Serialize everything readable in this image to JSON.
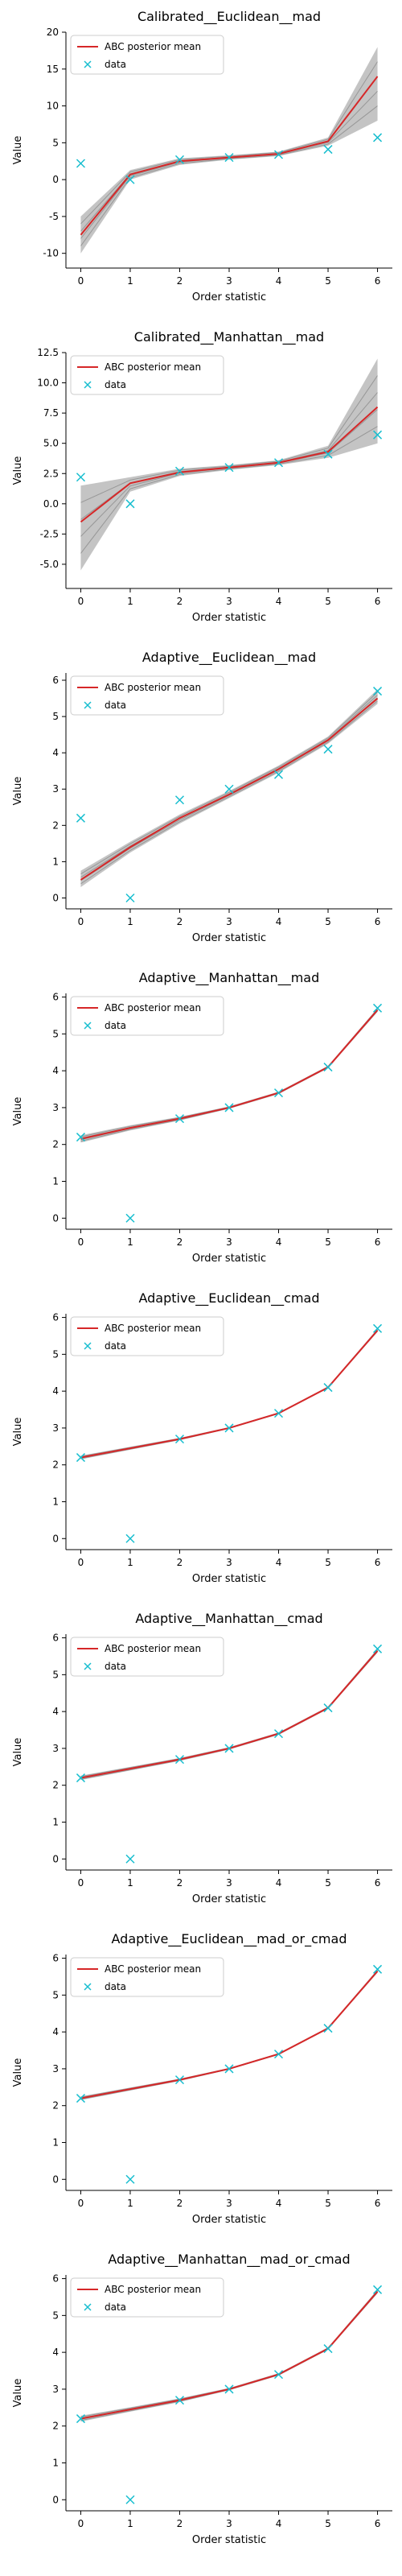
{
  "chart_data": [
    {
      "type": "line",
      "title": "Calibrated__Euclidean__mad",
      "xlabel": "Order statistic",
      "ylabel": "Value",
      "xlim": [
        -0.3,
        6.3
      ],
      "ylim": [
        -12,
        20
      ],
      "xticks": [
        "0",
        "1",
        "2",
        "3",
        "4",
        "5",
        "6"
      ],
      "yticks": [
        "-10",
        "-5",
        "0",
        "5",
        "10",
        "15",
        "20"
      ],
      "legend": {
        "position": "top-left",
        "entries": [
          "ABC posterior mean",
          "data"
        ]
      },
      "series": [
        {
          "name": "ABC posterior mean",
          "x": [
            0,
            1,
            2,
            3,
            4,
            5,
            6
          ],
          "values": [
            -7.5,
            0.7,
            2.5,
            3.0,
            3.5,
            5.2,
            14.0
          ],
          "color": "#d62728"
        },
        {
          "name": "data",
          "x": [
            0,
            1,
            2,
            3,
            4,
            5,
            6
          ],
          "values": [
            2.2,
            0.0,
            2.7,
            3.0,
            3.4,
            4.1,
            5.7
          ],
          "color": "#17becf",
          "marker": "x"
        }
      ],
      "posterior_band": {
        "lower": [
          -10.0,
          0.0,
          2.0,
          2.7,
          3.2,
          4.6,
          8.0
        ],
        "upper": [
          -5.0,
          1.3,
          2.9,
          3.3,
          3.8,
          5.7,
          18.0
        ]
      }
    },
    {
      "type": "line",
      "title": "Calibrated__Manhattan__mad",
      "xlabel": "Order statistic",
      "ylabel": "Value",
      "xlim": [
        -0.3,
        6.3
      ],
      "ylim": [
        -7,
        12.5
      ],
      "xticks": [
        "0",
        "1",
        "2",
        "3",
        "4",
        "5",
        "6"
      ],
      "yticks": [
        "-5.0",
        "-2.5",
        "0.0",
        "2.5",
        "5.0",
        "7.5",
        "10.0",
        "12.5"
      ],
      "legend": {
        "position": "top-left",
        "entries": [
          "ABC posterior mean",
          "data"
        ]
      },
      "series": [
        {
          "name": "ABC posterior mean",
          "x": [
            0,
            1,
            2,
            3,
            4,
            5,
            6
          ],
          "values": [
            -1.5,
            1.7,
            2.6,
            3.0,
            3.4,
            4.3,
            8.0
          ],
          "color": "#d62728"
        },
        {
          "name": "data",
          "x": [
            0,
            1,
            2,
            3,
            4,
            5,
            6
          ],
          "values": [
            2.2,
            0.0,
            2.7,
            3.0,
            3.4,
            4.1,
            5.7
          ],
          "color": "#17becf",
          "marker": "x"
        }
      ],
      "posterior_band": {
        "lower": [
          -5.5,
          1.0,
          2.3,
          2.8,
          3.2,
          3.8,
          5.0
        ],
        "upper": [
          1.5,
          2.2,
          2.9,
          3.2,
          3.6,
          4.8,
          12.0
        ]
      }
    },
    {
      "type": "line",
      "title": "Adaptive__Euclidean__mad",
      "xlabel": "Order statistic",
      "ylabel": "Value",
      "xlim": [
        -0.3,
        6.3
      ],
      "ylim": [
        -0.3,
        6.2
      ],
      "xticks": [
        "0",
        "1",
        "2",
        "3",
        "4",
        "5",
        "6"
      ],
      "yticks": [
        "0",
        "1",
        "2",
        "3",
        "4",
        "5",
        "6"
      ],
      "legend": {
        "position": "top-left",
        "entries": [
          "ABC posterior mean",
          "data"
        ]
      },
      "series": [
        {
          "name": "ABC posterior mean",
          "x": [
            0,
            1,
            2,
            3,
            4,
            5,
            6
          ],
          "values": [
            0.5,
            1.4,
            2.2,
            2.85,
            3.55,
            4.35,
            5.5
          ],
          "color": "#d62728"
        },
        {
          "name": "data",
          "x": [
            0,
            1,
            2,
            3,
            4,
            5,
            6
          ],
          "values": [
            2.2,
            0.0,
            2.7,
            3.0,
            3.4,
            4.1,
            5.7
          ],
          "color": "#17becf",
          "marker": "x"
        }
      ],
      "posterior_band": {
        "lower": [
          0.3,
          1.25,
          2.05,
          2.75,
          3.45,
          4.25,
          5.35
        ],
        "upper": [
          0.75,
          1.55,
          2.3,
          2.95,
          3.65,
          4.45,
          5.75
        ]
      }
    },
    {
      "type": "line",
      "title": "Adaptive__Manhattan__mad",
      "xlabel": "Order statistic",
      "ylabel": "Value",
      "xlim": [
        -0.3,
        6.3
      ],
      "ylim": [
        -0.3,
        6.1
      ],
      "xticks": [
        "0",
        "1",
        "2",
        "3",
        "4",
        "5",
        "6"
      ],
      "yticks": [
        "0",
        "1",
        "2",
        "3",
        "4",
        "5",
        "6"
      ],
      "legend": {
        "position": "top-left",
        "entries": [
          "ABC posterior mean",
          "data"
        ]
      },
      "series": [
        {
          "name": "ABC posterior mean",
          "x": [
            0,
            1,
            2,
            3,
            4,
            5,
            6
          ],
          "values": [
            2.15,
            2.45,
            2.7,
            3.0,
            3.4,
            4.1,
            5.65
          ],
          "color": "#d62728"
        },
        {
          "name": "data",
          "x": [
            0,
            1,
            2,
            3,
            4,
            5,
            6
          ],
          "values": [
            2.2,
            0.0,
            2.7,
            3.0,
            3.4,
            4.1,
            5.7
          ],
          "color": "#17becf",
          "marker": "x"
        }
      ],
      "posterior_band": {
        "lower": [
          2.05,
          2.38,
          2.65,
          2.97,
          3.37,
          4.07,
          5.6
        ],
        "upper": [
          2.25,
          2.52,
          2.75,
          3.03,
          3.43,
          4.13,
          5.7
        ]
      }
    },
    {
      "type": "line",
      "title": "Adaptive__Euclidean__cmad",
      "xlabel": "Order statistic",
      "ylabel": "Value",
      "xlim": [
        -0.3,
        6.3
      ],
      "ylim": [
        -0.3,
        6.1
      ],
      "xticks": [
        "0",
        "1",
        "2",
        "3",
        "4",
        "5",
        "6"
      ],
      "yticks": [
        "0",
        "1",
        "2",
        "3",
        "4",
        "5",
        "6"
      ],
      "legend": {
        "position": "top-left",
        "entries": [
          "ABC posterior mean",
          "data"
        ]
      },
      "series": [
        {
          "name": "ABC posterior mean",
          "x": [
            0,
            1,
            2,
            3,
            4,
            5,
            6
          ],
          "values": [
            2.2,
            2.45,
            2.7,
            3.0,
            3.4,
            4.1,
            5.65
          ],
          "color": "#d62728"
        },
        {
          "name": "data",
          "x": [
            0,
            1,
            2,
            3,
            4,
            5,
            6
          ],
          "values": [
            2.2,
            0.0,
            2.7,
            3.0,
            3.4,
            4.1,
            5.7
          ],
          "color": "#17becf",
          "marker": "x"
        }
      ],
      "posterior_band": {
        "lower": [
          2.15,
          2.41,
          2.67,
          2.98,
          3.38,
          4.08,
          5.61
        ],
        "upper": [
          2.25,
          2.49,
          2.73,
          3.02,
          3.42,
          4.12,
          5.69
        ]
      }
    },
    {
      "type": "line",
      "title": "Adaptive__Manhattan__cmad",
      "xlabel": "Order statistic",
      "ylabel": "Value",
      "xlim": [
        -0.3,
        6.3
      ],
      "ylim": [
        -0.3,
        6.1
      ],
      "xticks": [
        "0",
        "1",
        "2",
        "3",
        "4",
        "5",
        "6"
      ],
      "yticks": [
        "0",
        "1",
        "2",
        "3",
        "4",
        "5",
        "6"
      ],
      "legend": {
        "position": "top-left",
        "entries": [
          "ABC posterior mean",
          "data"
        ]
      },
      "series": [
        {
          "name": "ABC posterior mean",
          "x": [
            0,
            1,
            2,
            3,
            4,
            5,
            6
          ],
          "values": [
            2.2,
            2.45,
            2.7,
            3.0,
            3.4,
            4.1,
            5.65
          ],
          "color": "#d62728"
        },
        {
          "name": "data",
          "x": [
            0,
            1,
            2,
            3,
            4,
            5,
            6
          ],
          "values": [
            2.2,
            0.0,
            2.7,
            3.0,
            3.4,
            4.1,
            5.7
          ],
          "color": "#17becf",
          "marker": "x"
        }
      ],
      "posterior_band": {
        "lower": [
          2.14,
          2.4,
          2.66,
          2.97,
          3.37,
          4.07,
          5.6
        ],
        "upper": [
          2.26,
          2.5,
          2.74,
          3.03,
          3.43,
          4.13,
          5.7
        ]
      }
    },
    {
      "type": "line",
      "title": "Adaptive__Euclidean__mad_or_cmad",
      "xlabel": "Order statistic",
      "ylabel": "Value",
      "xlim": [
        -0.3,
        6.3
      ],
      "ylim": [
        -0.3,
        6.1
      ],
      "xticks": [
        "0",
        "1",
        "2",
        "3",
        "4",
        "5",
        "6"
      ],
      "yticks": [
        "0",
        "1",
        "2",
        "3",
        "4",
        "5",
        "6"
      ],
      "legend": {
        "position": "top-left",
        "entries": [
          "ABC posterior mean",
          "data"
        ]
      },
      "series": [
        {
          "name": "ABC posterior mean",
          "x": [
            0,
            1,
            2,
            3,
            4,
            5,
            6
          ],
          "values": [
            2.2,
            2.45,
            2.7,
            3.0,
            3.4,
            4.1,
            5.65
          ],
          "color": "#d62728"
        },
        {
          "name": "data",
          "x": [
            0,
            1,
            2,
            3,
            4,
            5,
            6
          ],
          "values": [
            2.2,
            0.0,
            2.7,
            3.0,
            3.4,
            4.1,
            5.7
          ],
          "color": "#17becf",
          "marker": "x"
        }
      ],
      "posterior_band": {
        "lower": [
          2.15,
          2.41,
          2.67,
          2.98,
          3.38,
          4.08,
          5.61
        ],
        "upper": [
          2.25,
          2.49,
          2.73,
          3.02,
          3.42,
          4.12,
          5.69
        ]
      }
    },
    {
      "type": "line",
      "title": "Adaptive__Manhattan__mad_or_cmad",
      "xlabel": "Order statistic",
      "ylabel": "Value",
      "xlim": [
        -0.3,
        6.3
      ],
      "ylim": [
        -0.3,
        6.1
      ],
      "xticks": [
        "0",
        "1",
        "2",
        "3",
        "4",
        "5",
        "6"
      ],
      "yticks": [
        "0",
        "1",
        "2",
        "3",
        "4",
        "5",
        "6"
      ],
      "legend": {
        "position": "top-left",
        "entries": [
          "ABC posterior mean",
          "data"
        ]
      },
      "series": [
        {
          "name": "ABC posterior mean",
          "x": [
            0,
            1,
            2,
            3,
            4,
            5,
            6
          ],
          "values": [
            2.2,
            2.45,
            2.7,
            3.0,
            3.4,
            4.1,
            5.65
          ],
          "color": "#d62728"
        },
        {
          "name": "data",
          "x": [
            0,
            1,
            2,
            3,
            4,
            5,
            6
          ],
          "values": [
            2.2,
            0.0,
            2.7,
            3.0,
            3.4,
            4.1,
            5.7
          ],
          "color": "#17becf",
          "marker": "x"
        }
      ],
      "posterior_band": {
        "lower": [
          2.12,
          2.39,
          2.65,
          2.97,
          3.37,
          4.07,
          5.6
        ],
        "upper": [
          2.28,
          2.51,
          2.75,
          3.03,
          3.43,
          4.13,
          5.7
        ]
      }
    }
  ]
}
